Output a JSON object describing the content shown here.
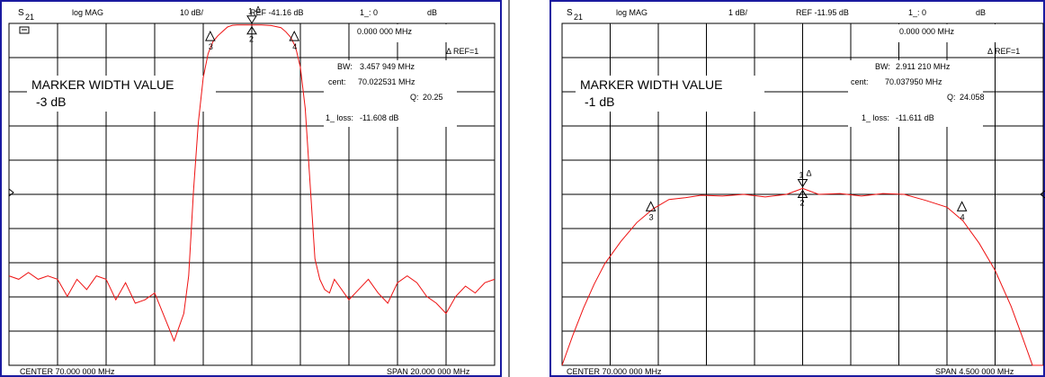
{
  "panels": [
    {
      "trace_param": "S",
      "trace_param_sub": "21",
      "format": "log MAG",
      "scale": "10 dB/",
      "ref_level": "REF -41.16 dB",
      "marker_readout": "1_: 0",
      "marker_unit": "dB",
      "marker_freq": "0.000 000 MHz",
      "ref_marker": "REF=1",
      "bw_label": "BW:",
      "bw_value": "3.457 949 MHz",
      "cent_label": "cent:",
      "cent_value": "70.022531 MHz",
      "q_label": "Q:",
      "q_value": "20.25",
      "loss_label": "1_ loss:",
      "loss_value": "-11.608 dB",
      "width_title": "MARKER WIDTH VALUE",
      "width_setting": "-3 dB",
      "marker_labels": [
        "1",
        "2",
        "3",
        "4"
      ],
      "center": "CENTER  70.000 000 MHz",
      "span": "SPAN   20.000 000 MHz"
    },
    {
      "trace_param": "S",
      "trace_param_sub": "21",
      "format": "log MAG",
      "scale": "1 dB/",
      "ref_level": "REF -11.95 dB",
      "marker_readout": "1_: 0",
      "marker_unit": "dB",
      "marker_freq": "0.000 000 MHz",
      "ref_marker": "REF=1",
      "bw_label": "BW:",
      "bw_value": "2.911 210 MHz",
      "cent_label": "cent:",
      "cent_value": "70.037950 MHz",
      "q_label": "Q:",
      "q_value": "24.058",
      "loss_label": "1_ loss:",
      "loss_value": "-11.611 dB",
      "width_title": "MARKER WIDTH VALUE",
      "width_setting": "-1 dB",
      "marker_labels": [
        "1",
        "2",
        "3",
        "4"
      ],
      "center": "CENTER  70.000 000 MHz",
      "span": "SPAN   4.500 000 MHz"
    }
  ],
  "colors": {
    "trace": "#ee1111",
    "grid": "#000000",
    "frame": "#1a1aa0",
    "background": "#ffffff"
  },
  "chart_data": [
    {
      "type": "line",
      "x_unit": "MHz",
      "y_unit": "dB",
      "xlim": [
        60.0,
        80.0
      ],
      "ylim": [
        -111.16,
        -11.16
      ],
      "grid": true,
      "series": [
        {
          "x": [
            60.0,
            60.4,
            60.8,
            61.2,
            61.6,
            62.0,
            62.4,
            62.8,
            63.2,
            63.6,
            64.0,
            64.4,
            64.8,
            65.2,
            65.6,
            66.0,
            66.4,
            66.8,
            67.2,
            67.4,
            67.6,
            67.8,
            68.0,
            68.2,
            68.4,
            68.6,
            68.8,
            69.0,
            69.2,
            69.4,
            69.6,
            70.0,
            70.4,
            70.8,
            71.2,
            71.4,
            71.6,
            71.8,
            72.0,
            72.2,
            72.4,
            72.6,
            72.8,
            73.0,
            73.2,
            73.4,
            73.6,
            74.0,
            74.4,
            74.8,
            75.2,
            75.6,
            76.0,
            76.4,
            76.8,
            77.2,
            77.6,
            78.0,
            78.4,
            78.8,
            79.2,
            79.6,
            80.0
          ],
          "y": [
            -85,
            -86,
            -84,
            -86,
            -85,
            -86,
            -91,
            -86,
            -89,
            -85,
            -86,
            -92,
            -87,
            -93,
            -92,
            -90,
            -97,
            -104,
            -96,
            -85,
            -60,
            -40,
            -27,
            -20,
            -16.5,
            -14.8,
            -13.5,
            -12.2,
            -11.7,
            -11.6,
            -11.6,
            -11.61,
            -11.62,
            -11.8,
            -12.4,
            -13.6,
            -15.2,
            -18,
            -24,
            -36,
            -58,
            -80,
            -86,
            -89,
            -90,
            -86,
            -88,
            -92,
            -89,
            -86,
            -90,
            -93,
            -87,
            -85,
            -87,
            -91,
            -93,
            -96,
            -91,
            -88,
            -90,
            -87,
            -86
          ]
        }
      ],
      "markers": [
        {
          "label": "1",
          "x": 70.0,
          "y": -11.61
        },
        {
          "label": "2",
          "x": 70.0,
          "y": -11.61
        },
        {
          "label": "3",
          "x": 68.29,
          "y": -14.6
        },
        {
          "label": "4",
          "x": 71.75,
          "y": -14.6
        }
      ]
    },
    {
      "type": "line",
      "x_unit": "MHz",
      "y_unit": "dB",
      "xlim": [
        67.75,
        72.25
      ],
      "ylim": [
        -21.95,
        -1.95
      ],
      "grid": true,
      "series": [
        {
          "x": [
            67.75,
            67.85,
            67.95,
            68.05,
            68.15,
            68.3,
            68.45,
            68.6,
            68.75,
            68.9,
            69.05,
            69.25,
            69.45,
            69.65,
            69.85,
            70.0,
            70.15,
            70.35,
            70.55,
            70.75,
            70.95,
            71.15,
            71.35,
            71.5,
            71.65,
            71.8,
            71.95,
            72.05,
            72.15,
            72.25
          ],
          "y": [
            -21.95,
            -20.2,
            -18.6,
            -17.2,
            -16.0,
            -14.7,
            -13.6,
            -12.8,
            -12.25,
            -12.15,
            -12.0,
            -12.05,
            -11.95,
            -12.1,
            -11.95,
            -11.6,
            -11.95,
            -11.9,
            -12.05,
            -11.9,
            -11.95,
            -12.3,
            -12.7,
            -13.5,
            -14.8,
            -16.4,
            -18.5,
            -20.2,
            -21.95,
            -21.95
          ]
        }
      ],
      "markers": [
        {
          "label": "1",
          "x": 70.0,
          "y": -11.611
        },
        {
          "label": "2",
          "x": 70.0,
          "y": -11.611
        },
        {
          "label": "3",
          "x": 68.58,
          "y": -12.6
        },
        {
          "label": "4",
          "x": 71.49,
          "y": -12.6
        }
      ]
    }
  ]
}
